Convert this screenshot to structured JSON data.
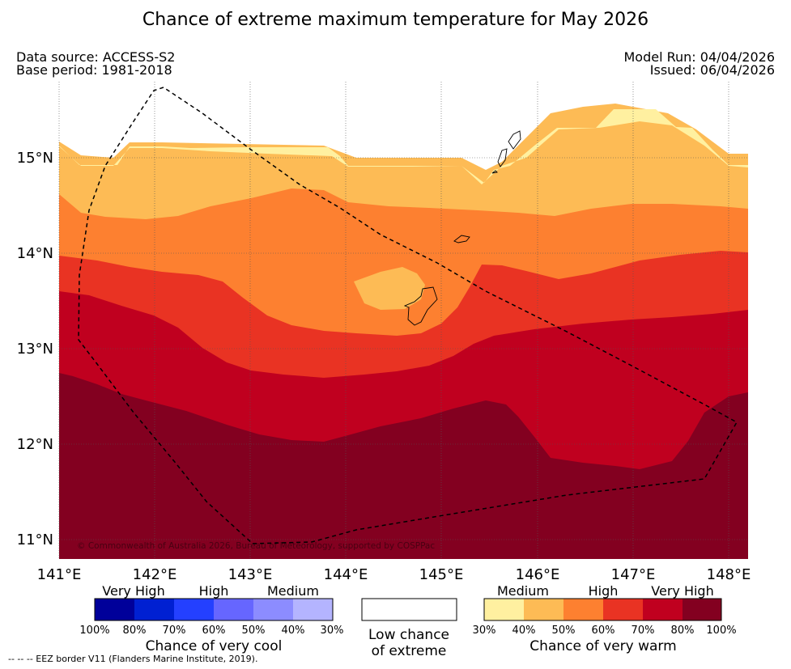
{
  "title": "Chance of extreme maximum temperature for May 2026",
  "header": {
    "data_source": "Data source: ACCESS-S2",
    "base_period": "Base period: 1981-2018",
    "model_run": "Model Run: 04/04/2026",
    "issued": "Issued: 06/04/2026"
  },
  "map": {
    "lat_labels": [
      "15°N",
      "14°N",
      "13°N",
      "12°N",
      "11°N"
    ],
    "lon_labels": [
      "141°E",
      "142°E",
      "143°E",
      "144°E",
      "145°E",
      "146°E",
      "147°E",
      "148°E"
    ],
    "copyright": "© Commonwealth of Australia 2026, Bureau of Meteorology, supported by COSPPac",
    "colors": {
      "c30": "#fff0a0",
      "c40": "#fdbb55",
      "c50": "#fd8030",
      "c60": "#e93323",
      "c70": "#c0001f",
      "c80": "#830020"
    }
  },
  "legend": {
    "cool_categories": [
      "Very High",
      "High",
      "Medium"
    ],
    "cool_ticks": [
      "100%",
      "80%",
      "70%",
      "60%",
      "50%",
      "40%",
      "30%"
    ],
    "cool_caption": "Chance of very cool",
    "cool_colors": [
      "#00009a",
      "#0020d2",
      "#2440ff",
      "#6666ff",
      "#8c8cff",
      "#b4b4ff"
    ],
    "low_caption_1": "Low chance",
    "low_caption_2": "of extreme",
    "warm_categories": [
      "Medium",
      "High",
      "Very High"
    ],
    "warm_ticks": [
      "30%",
      "40%",
      "50%",
      "60%",
      "70%",
      "80%",
      "100%"
    ],
    "warm_caption": "Chance of very warm",
    "warm_colors": [
      "#fff0a0",
      "#fdbb55",
      "#fd8030",
      "#e93323",
      "#c0001f",
      "#830020"
    ]
  },
  "footer": "--  --  -- EEZ border V11 (Flanders Marine Institute, 2019)."
}
